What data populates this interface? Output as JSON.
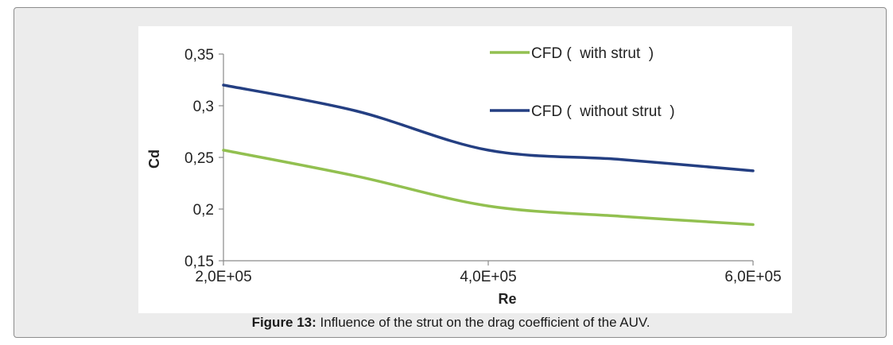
{
  "caption": {
    "label": "Figure 13:",
    "text": " Influence of the strut on the drag coefficient of the AUV."
  },
  "chart_data": {
    "type": "line",
    "xlabel": "Re",
    "ylabel": "Cd",
    "x_ticks": [
      {
        "value": 200000,
        "label": "2,0E+05"
      },
      {
        "value": 400000,
        "label": "4,0E+05"
      },
      {
        "value": 600000,
        "label": "6,0E+05"
      }
    ],
    "y_ticks": [
      {
        "value": 0.15,
        "label": "0,15"
      },
      {
        "value": 0.2,
        "label": "0,2"
      },
      {
        "value": 0.25,
        "label": "0,25"
      },
      {
        "value": 0.3,
        "label": "0,3"
      },
      {
        "value": 0.35,
        "label": "0,35"
      }
    ],
    "xlim": [
      200000,
      600000
    ],
    "ylim": [
      0.15,
      0.35
    ],
    "grid": false,
    "legend_position": "top-right",
    "series": [
      {
        "name": "CFD (  with strut  )",
        "color": "#92c050",
        "points": [
          [
            200000,
            0.257
          ],
          [
            300000,
            0.232
          ],
          [
            400000,
            0.203
          ],
          [
            500000,
            0.193
          ],
          [
            600000,
            0.185
          ]
        ]
      },
      {
        "name": "CFD (  without strut  )",
        "color": "#243f82",
        "points": [
          [
            200000,
            0.32
          ],
          [
            300000,
            0.295
          ],
          [
            400000,
            0.257
          ],
          [
            500000,
            0.248
          ],
          [
            600000,
            0.237
          ]
        ]
      }
    ]
  }
}
